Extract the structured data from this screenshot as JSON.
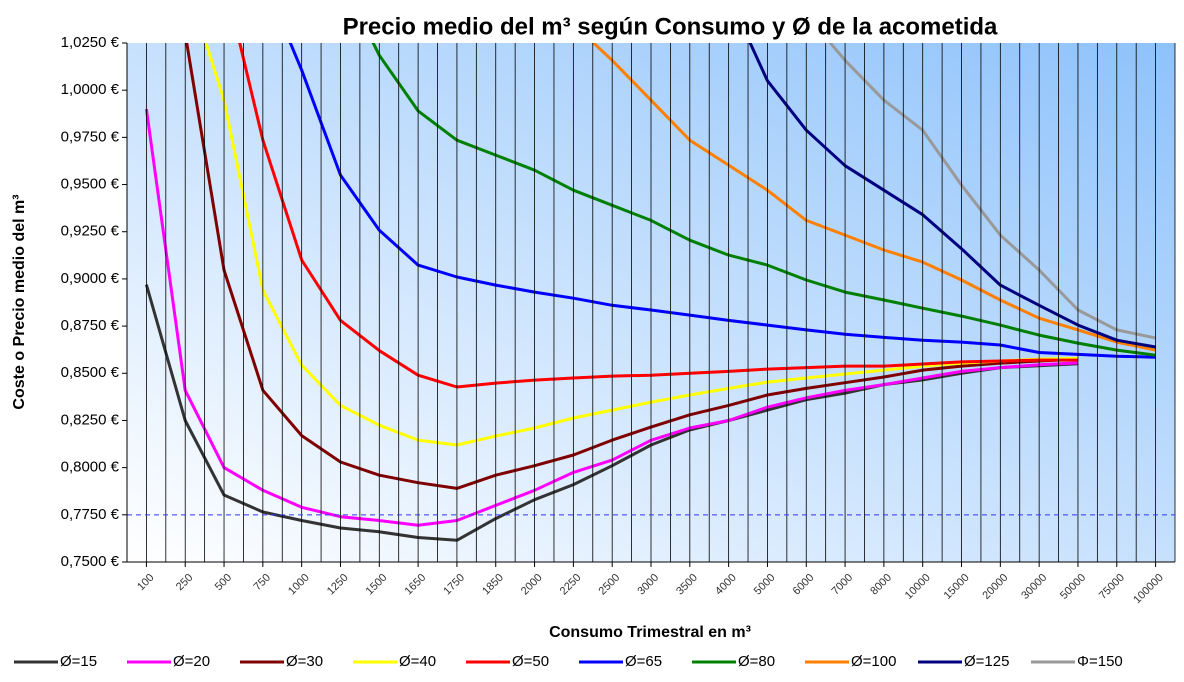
{
  "chart_data": {
    "type": "line",
    "title": "Precio medio del m³ según Consumo y Ø de la acometida",
    "x_label": "Consumo Trimestral en m³",
    "y_label": "Coste o Precio medio del m³",
    "categories": [
      "100",
      "250",
      "500",
      "750",
      "1000",
      "1250",
      "1500",
      "1650",
      "1750",
      "1850",
      "2000",
      "2250",
      "2500",
      "3000",
      "3500",
      "4000",
      "5000",
      "6000",
      "7000",
      "8000",
      "10000",
      "15000",
      "20000",
      "30000",
      "50000",
      "75000",
      "100000"
    ],
    "ylim": [
      0.75,
      1.025
    ],
    "yticks": [
      {
        "value": 0.75,
        "label": "0,7500 €"
      },
      {
        "value": 0.775,
        "label": "0,7750 €"
      },
      {
        "value": 0.8,
        "label": "0,8000 €"
      },
      {
        "value": 0.825,
        "label": "0,8250 €"
      },
      {
        "value": 0.85,
        "label": "0,8500 €"
      },
      {
        "value": 0.875,
        "label": "0,8750 €"
      },
      {
        "value": 0.9,
        "label": "0,9000 €"
      },
      {
        "value": 0.925,
        "label": "0,9250 €"
      },
      {
        "value": 0.95,
        "label": "0,9500 €"
      },
      {
        "value": 0.975,
        "label": "0,9750 €"
      },
      {
        "value": 1.0,
        "label": "1,0000 €"
      },
      {
        "value": 1.025,
        "label": "1,0250 €"
      }
    ],
    "grid": "x",
    "reference_line": {
      "value": 0.775,
      "color": "#3333ff"
    },
    "legend": "bottom",
    "series": [
      {
        "name": "Ø=15",
        "color": "#333333",
        "values": [
          0.897,
          0.825,
          0.7855,
          0.7765,
          0.772,
          0.768,
          0.766,
          0.763,
          0.7615,
          0.773,
          0.783,
          0.791,
          0.801,
          0.812,
          0.82,
          0.825,
          0.8305,
          0.836,
          0.8395,
          0.844,
          0.8465,
          0.85,
          0.853,
          0.854,
          0.855,
          null,
          null
        ]
      },
      {
        "name": "Ø=20",
        "color": "#ff00ff",
        "values": [
          0.99,
          0.841,
          0.8,
          0.788,
          0.779,
          0.774,
          0.772,
          0.7695,
          0.772,
          0.78,
          0.788,
          0.7975,
          0.804,
          0.8145,
          0.821,
          0.825,
          0.832,
          0.837,
          0.841,
          0.844,
          0.8475,
          0.851,
          0.853,
          0.8545,
          0.8555,
          null,
          null
        ]
      },
      {
        "name": "Ø=30",
        "color": "#800000",
        "values": [
          null,
          1.03,
          0.9047,
          0.841,
          0.817,
          0.803,
          0.796,
          0.792,
          0.789,
          0.796,
          0.801,
          0.8067,
          0.8146,
          0.8215,
          0.828,
          0.833,
          0.8385,
          0.842,
          0.845,
          0.848,
          0.8517,
          0.8538,
          0.8554,
          0.8565,
          0.8575,
          null,
          null
        ]
      },
      {
        "name": "Ø=40",
        "color": "#ffff00",
        "values": [
          null,
          1.06,
          0.9947,
          0.894,
          0.8543,
          0.833,
          0.8225,
          0.8146,
          0.812,
          0.8167,
          0.821,
          0.8263,
          0.8305,
          0.8347,
          0.8385,
          0.842,
          0.8453,
          0.8475,
          0.8496,
          0.8517,
          0.8538,
          0.8554,
          0.8565,
          0.8575,
          0.858,
          null,
          null
        ]
      },
      {
        "name": "Ø=50",
        "color": "#ff0000",
        "values": [
          null,
          null,
          1.06,
          0.9735,
          0.91,
          0.878,
          0.862,
          0.849,
          0.8427,
          0.8448,
          0.8464,
          0.8475,
          0.8485,
          0.849,
          0.85,
          0.851,
          0.8522,
          0.853,
          0.8538,
          0.8538,
          0.8549,
          0.856,
          0.8565,
          0.857,
          0.857,
          null,
          null
        ]
      },
      {
        "name": "Ø=65",
        "color": "#0000ff",
        "values": [
          null,
          null,
          null,
          1.06,
          1.0106,
          0.955,
          0.9258,
          0.9073,
          0.901,
          0.8967,
          0.893,
          0.8898,
          0.886,
          0.8835,
          0.8808,
          0.878,
          0.8755,
          0.873,
          0.8707,
          0.869,
          0.8675,
          0.8665,
          0.865,
          0.861,
          0.86,
          0.859,
          0.8585
        ]
      },
      {
        "name": "Ø=80",
        "color": "#008000",
        "values": [
          null,
          null,
          null,
          null,
          null,
          1.06,
          1.0185,
          0.989,
          0.9735,
          0.9656,
          0.9576,
          0.947,
          0.939,
          0.931,
          0.9205,
          0.9126,
          0.9073,
          0.8994,
          0.893,
          0.8888,
          0.8845,
          0.8803,
          0.8755,
          0.8702,
          0.866,
          0.8623,
          0.8596
        ]
      },
      {
        "name": "Ø=100",
        "color": "#ff7f00",
        "values": [
          null,
          null,
          null,
          null,
          null,
          null,
          null,
          null,
          null,
          null,
          null,
          1.035,
          1.0158,
          0.9947,
          0.9735,
          0.9603,
          0.947,
          0.931,
          0.9232,
          0.9153,
          0.9089,
          0.8994,
          0.8888,
          0.8792,
          0.873,
          0.8665,
          0.8623
        ]
      },
      {
        "name": "Ø=125",
        "color": "#000080",
        "values": [
          null,
          null,
          null,
          null,
          null,
          null,
          null,
          null,
          null,
          null,
          null,
          null,
          null,
          null,
          null,
          1.05,
          1.005,
          0.9788,
          0.96,
          0.947,
          0.934,
          0.916,
          0.8967,
          0.886,
          0.8755,
          0.8675,
          0.8639
        ]
      },
      {
        "name": "Φ=150",
        "color": "#999999",
        "values": [
          null,
          null,
          null,
          null,
          null,
          null,
          null,
          null,
          null,
          null,
          null,
          null,
          null,
          null,
          null,
          null,
          null,
          1.04,
          1.0158,
          0.9947,
          0.9788,
          0.9497,
          0.9232,
          0.9047,
          0.8835,
          0.873,
          0.8687
        ]
      }
    ]
  }
}
